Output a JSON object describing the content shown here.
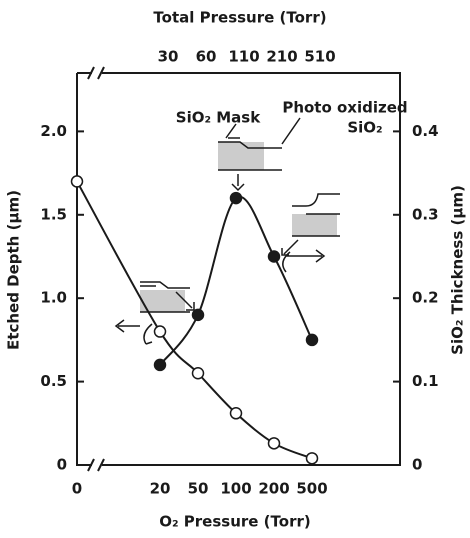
{
  "chart_data": {
    "type": "line",
    "x_label": "O₂ Pressure (Torr)",
    "y_label": "Etched Depth (µm)",
    "y2_label": "SiO₂ Thickness (µm)",
    "top_label": "Total Pressure (Torr)",
    "categories": [
      "0",
      "20",
      "50",
      "100",
      "200",
      "500"
    ],
    "top_categories": [
      "30",
      "60",
      "110",
      "210",
      "510"
    ],
    "ylim": [
      0,
      2.35
    ],
    "yticks": [
      0,
      0.5,
      {
        "value": 1,
        "label": "1.0"
      },
      1.5,
      {
        "value": 2,
        "label": "2.0"
      }
    ],
    "y2lim": [
      0,
      0.47
    ],
    "y2ticks": [
      0,
      0.1,
      0.2,
      0.3,
      0.4
    ],
    "annotations": [
      "SiO₂ Mask",
      "Photo oxidized",
      "SiO₂"
    ],
    "series": [
      {
        "color": "#1a1a1a",
        "marker": "open",
        "values": [
          1.7,
          0.8,
          0.55,
          0.31,
          0.13,
          0.04
        ]
      },
      {
        "color": "#1a1a1a",
        "marker": "filled",
        "axis": "y2",
        "values": [
          null,
          0.12,
          0.18,
          0.32,
          0.25,
          0.15
        ]
      }
    ]
  }
}
